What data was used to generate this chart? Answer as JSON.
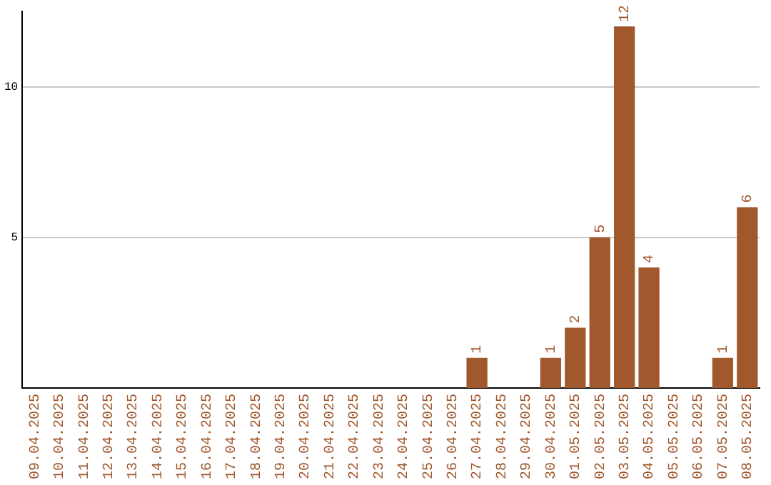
{
  "chart_data": {
    "type": "bar",
    "categories": [
      "09.04.2025",
      "10.04.2025",
      "11.04.2025",
      "12.04.2025",
      "13.04.2025",
      "14.04.2025",
      "15.04.2025",
      "16.04.2025",
      "17.04.2025",
      "18.04.2025",
      "19.04.2025",
      "20.04.2025",
      "21.04.2025",
      "22.04.2025",
      "23.04.2025",
      "24.04.2025",
      "25.04.2025",
      "26.04.2025",
      "27.04.2025",
      "28.04.2025",
      "29.04.2025",
      "30.04.2025",
      "01.05.2025",
      "02.05.2025",
      "03.05.2025",
      "04.05.2025",
      "05.05.2025",
      "06.05.2025",
      "07.05.2025",
      "08.05.2025"
    ],
    "values": [
      0,
      0,
      0,
      0,
      0,
      0,
      0,
      0,
      0,
      0,
      0,
      0,
      0,
      0,
      0,
      0,
      0,
      0,
      1,
      0,
      0,
      1,
      2,
      5,
      12,
      4,
      0,
      0,
      1,
      6
    ],
    "value_labels": [
      null,
      null,
      null,
      null,
      null,
      null,
      null,
      null,
      null,
      null,
      null,
      null,
      null,
      null,
      null,
      null,
      null,
      null,
      "1",
      null,
      null,
      "1",
      "2",
      "5",
      "12",
      "4",
      null,
      null,
      "1",
      "6"
    ],
    "color": "#a0582c",
    "ylim": [
      0,
      12.5
    ],
    "yticks": [
      5,
      10
    ],
    "grid": "y",
    "legend": false
  }
}
